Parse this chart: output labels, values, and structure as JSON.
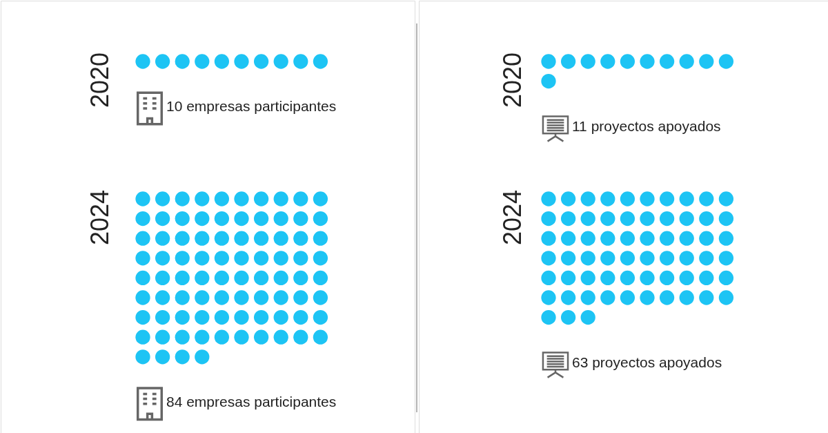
{
  "chart_data": [
    {
      "type": "other",
      "categories": [
        "2020",
        "2024"
      ],
      "values": [
        10,
        84
      ],
      "value_labels": [
        "10 empresas participantes",
        "84 empresas participantes"
      ],
      "colors": [
        "#1dc4f4",
        "#1dc4f4"
      ]
    },
    {
      "type": "other",
      "categories": [
        "2020",
        "2024"
      ],
      "values": [
        11,
        63
      ],
      "value_labels": [
        "11 proyectos apoyados",
        "63 proyectos apoyados"
      ],
      "colors": [
        "#1dc4f4",
        "#1dc4f4"
      ]
    }
  ]
}
